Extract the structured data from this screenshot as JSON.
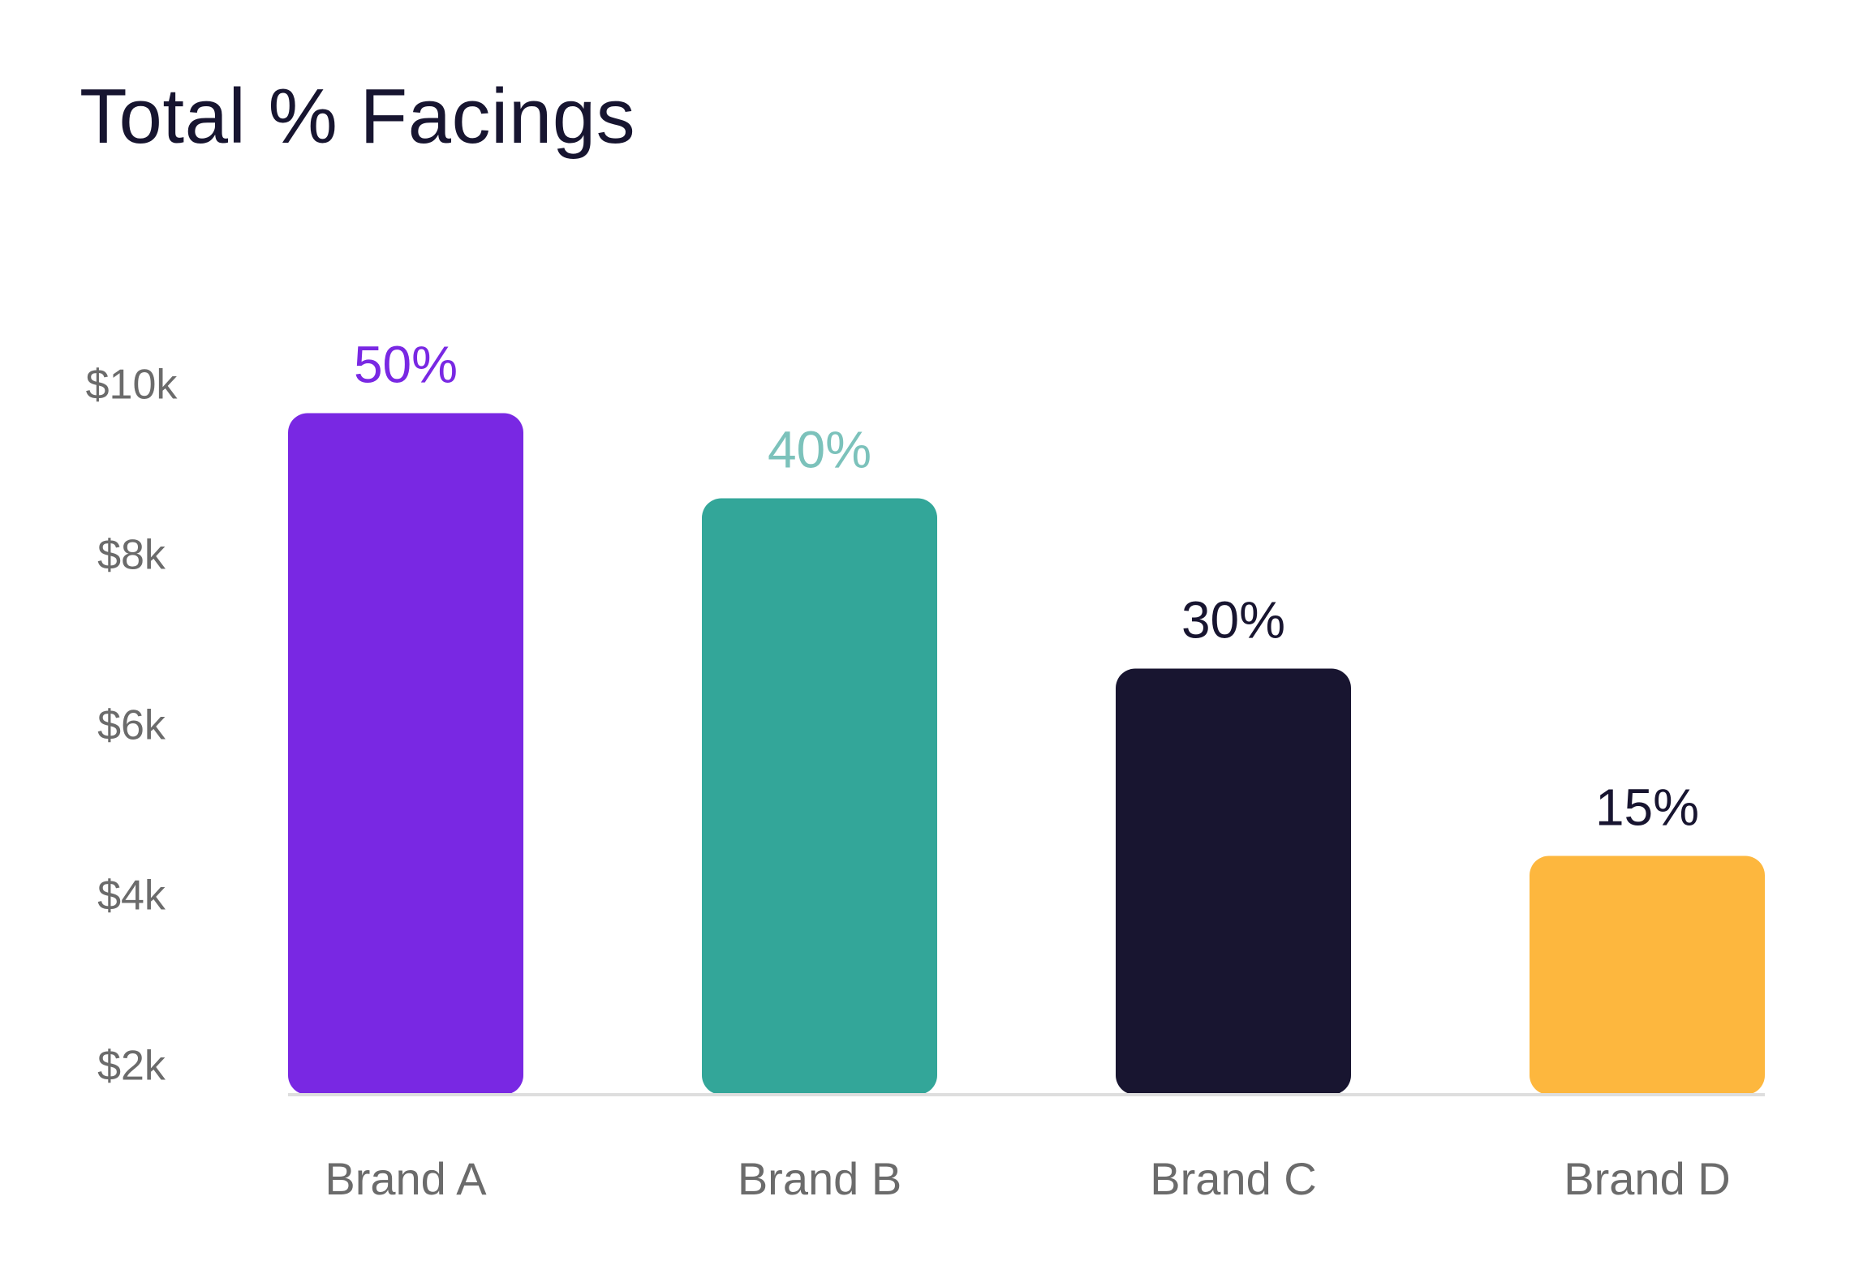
{
  "chart_data": {
    "type": "bar",
    "title": "Total % Facings",
    "categories": [
      "Brand A",
      "Brand B",
      "Brand C",
      "Brand D"
    ],
    "values": [
      9700,
      8700,
      6700,
      4500
    ],
    "data_labels": [
      "50%",
      "40%",
      "30%",
      "15%"
    ],
    "bar_colors": [
      "#7928e3",
      "#33a699",
      "#181530",
      "#fdb73e"
    ],
    "label_colors": [
      "#7928e3",
      "#7cc2bb",
      "#181530",
      "#181530"
    ],
    "y_ticks": [
      2000,
      4000,
      6000,
      8000,
      10000
    ],
    "y_tick_labels": [
      "$2k",
      "$4k",
      "$6k",
      "$8k",
      "$10k"
    ],
    "ylim": [
      2000,
      10000
    ],
    "xlabel": "",
    "ylabel": "",
    "grid": false,
    "legend": "none"
  }
}
